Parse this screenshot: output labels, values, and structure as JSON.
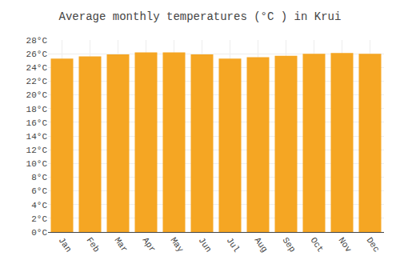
{
  "chart_data": {
    "type": "bar",
    "title": "Average monthly temperatures (°C ) in Krui",
    "categories": [
      "Jan",
      "Feb",
      "Mar",
      "Apr",
      "May",
      "Jun",
      "Jul",
      "Aug",
      "Sep",
      "Oct",
      "Nov",
      "Dec"
    ],
    "values": [
      25.3,
      25.6,
      25.9,
      26.2,
      26.2,
      25.9,
      25.3,
      25.5,
      25.7,
      26.0,
      26.1,
      26.0
    ],
    "color": "#F5A623",
    "ylim": [
      0,
      28
    ],
    "yticks": [
      {
        "value": 0,
        "label": "0°C"
      },
      {
        "value": 2,
        "label": "2°C"
      },
      {
        "value": 4,
        "label": "4°C"
      },
      {
        "value": 6,
        "label": "6°C"
      },
      {
        "value": 8,
        "label": "8°C"
      },
      {
        "value": 10,
        "label": "10°C"
      },
      {
        "value": 12,
        "label": "12°C"
      },
      {
        "value": 14,
        "label": "14°C"
      },
      {
        "value": 16,
        "label": "16°C"
      },
      {
        "value": 18,
        "label": "18°C"
      },
      {
        "value": 20,
        "label": "20°C"
      },
      {
        "value": 22,
        "label": "22°C"
      },
      {
        "value": 24,
        "label": "24°C"
      },
      {
        "value": 26,
        "label": "26°C"
      },
      {
        "value": 28,
        "label": "28°C"
      }
    ],
    "grid": true
  }
}
